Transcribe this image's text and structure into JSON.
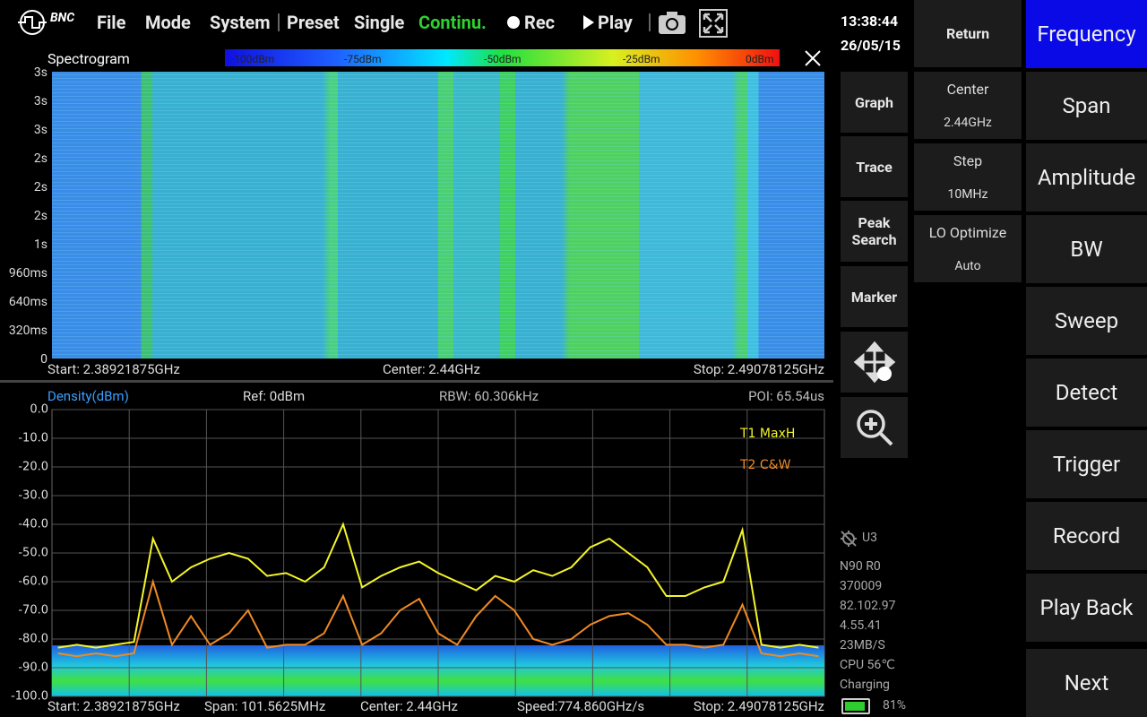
{
  "toolbar": {
    "logo": "BNC",
    "menu": [
      "File",
      "Mode",
      "System",
      "Preset",
      "Single",
      "Continu.",
      "Rec",
      "Play"
    ]
  },
  "clock": {
    "time": "13:38:44",
    "date": "26/05/15"
  },
  "spectrogram": {
    "title": "Spectrogram",
    "colorbar": [
      "-100dBm",
      "-75dBm",
      "-50dBm",
      "-25dBm",
      "0dBm"
    ],
    "time_labels": [
      "3s",
      "3s",
      "3s",
      "2s",
      "2s",
      "2s",
      "1s",
      "960ms",
      "640ms",
      "320ms",
      "0"
    ],
    "start": "Start: 2.38921875GHz",
    "center": "Center: 2.44GHz",
    "stop": "Stop: 2.49078125GHz"
  },
  "spectrum_header": {
    "density": "Density(dBm)",
    "ref": "Ref: 0dBm",
    "rbw": "RBW: 60.306kHz",
    "poi": "POI: 65.54us"
  },
  "spectrum_footer": {
    "start": "Start: 2.38921875GHz",
    "span": "Span: 101.5625MHz",
    "center": "Center: 2.44GHz",
    "speed": "Speed:774.860GHz/s",
    "stop": "Stop: 2.49078125GHz"
  },
  "chart_data": {
    "type": "line",
    "x": [
      2.39,
      2.3925,
      2.395,
      2.3975,
      2.4,
      2.4025,
      2.405,
      2.4075,
      2.41,
      2.4125,
      2.415,
      2.4175,
      2.42,
      2.4225,
      2.425,
      2.4275,
      2.43,
      2.4325,
      2.435,
      2.4375,
      2.44,
      2.4425,
      2.445,
      2.4475,
      2.45,
      2.4525,
      2.455,
      2.4575,
      2.46,
      2.4625,
      2.465,
      2.4675,
      2.47,
      2.4725,
      2.475,
      2.4775,
      2.48,
      2.4825,
      2.485,
      2.4875,
      2.49
    ],
    "series": [
      {
        "name": "T1 MaxH",
        "color": "#f5f52a",
        "values": [
          -83,
          -82,
          -83,
          -82,
          -81,
          -45,
          -60,
          -55,
          -52,
          -50,
          -52,
          -58,
          -57,
          -60,
          -55,
          -40,
          -62,
          -58,
          -55,
          -53,
          -57,
          -60,
          -63,
          -58,
          -60,
          -56,
          -58,
          -55,
          -48,
          -45,
          -50,
          -55,
          -65,
          -65,
          -62,
          -60,
          -42,
          -82,
          -83,
          -82,
          -83
        ]
      },
      {
        "name": "T2 C&W",
        "color": "#f08a24",
        "values": [
          -85,
          -86,
          -85,
          -86,
          -85,
          -60,
          -82,
          -72,
          -82,
          -78,
          -70,
          -83,
          -82,
          -82,
          -78,
          -65,
          -82,
          -78,
          -70,
          -66,
          -78,
          -82,
          -72,
          -65,
          -70,
          -80,
          -82,
          -80,
          -75,
          -72,
          -71,
          -75,
          -82,
          -82,
          -83,
          -82,
          -68,
          -85,
          -86,
          -85,
          -86
        ]
      }
    ],
    "xlim": [
      2.38921875,
      2.49078125
    ],
    "ylim": [
      -100,
      0
    ],
    "yticks": [
      {
        "value": 0,
        "label": "0.0"
      },
      {
        "value": -10,
        "label": "-10.0"
      },
      {
        "value": -20,
        "label": "-20.0"
      },
      {
        "value": -30,
        "label": "-30.0"
      },
      {
        "value": -40,
        "label": "-40.0"
      },
      {
        "value": -50,
        "label": "-50.0"
      },
      {
        "value": -60,
        "label": "-60.0"
      },
      {
        "value": -70,
        "label": "-70.0"
      },
      {
        "value": -80,
        "label": "-80.0"
      },
      {
        "value": -90,
        "label": "-90.0"
      },
      {
        "value": -100,
        "label": "-100.0"
      }
    ],
    "grid": true
  },
  "side_buttons": [
    "Graph",
    "Trace",
    "Peak Search",
    "Marker"
  ],
  "return": "Return",
  "params": [
    {
      "label": "Center",
      "value": "2.44GHz"
    },
    {
      "label": "Step",
      "value": "10MHz"
    },
    {
      "label": "LO Optimize",
      "value": "Auto"
    }
  ],
  "main_menu": [
    "Frequency",
    "Span",
    "Amplitude",
    "BW",
    "Sweep",
    "Detect",
    "Trigger",
    "Record",
    "Play Back",
    "Next"
  ],
  "status": {
    "gps": "U3",
    "lines": [
      "N90 R0",
      "370009",
      "82.102.97",
      "4.55.41",
      "23MB/S",
      "CPU  56℃",
      "Charging"
    ],
    "battery": "81%"
  }
}
